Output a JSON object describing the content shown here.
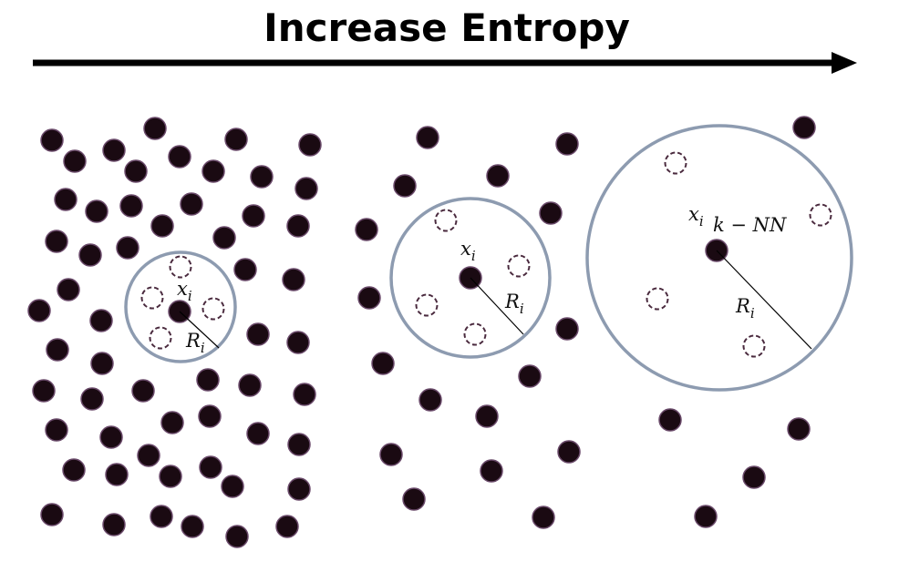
{
  "title": "Increase Entropy",
  "panels": [
    {
      "point_label": {
        "base": "x",
        "sub": "i"
      },
      "radius_label": {
        "base": "R",
        "sub": "i"
      }
    },
    {
      "point_label": {
        "base": "x",
        "sub": "i"
      },
      "radius_label": {
        "base": "R",
        "sub": "i"
      }
    },
    {
      "point_label": {
        "base": "x",
        "sub": "i"
      },
      "radius_label": {
        "base": "R",
        "sub": "i"
      },
      "method_label": "k − NN"
    }
  ]
}
